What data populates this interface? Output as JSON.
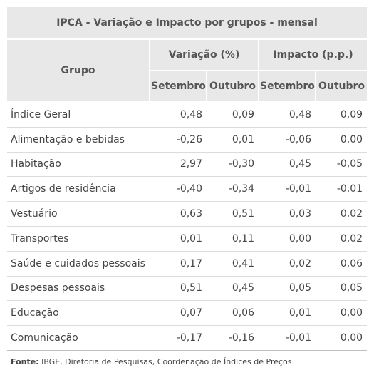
{
  "table": {
    "title": "IPCA - Variação e Impacto por grupos - mensal",
    "col_group": "Grupo",
    "col_variacao": "Variação (%)",
    "col_impacto": "Impacto (p.p.)",
    "sub_setembro": "Setembro",
    "sub_outubro": "Outubro",
    "rows": [
      {
        "grupo": "Índice Geral",
        "var_set": "0,48",
        "var_out": "0,09",
        "imp_set": "0,48",
        "imp_out": "0,09"
      },
      {
        "grupo": "Alimentação e bebidas",
        "var_set": "-0,26",
        "var_out": "0,01",
        "imp_set": "-0,06",
        "imp_out": "0,00"
      },
      {
        "grupo": "Habitação",
        "var_set": "2,97",
        "var_out": "-0,30",
        "imp_set": "0,45",
        "imp_out": "-0,05"
      },
      {
        "grupo": "Artigos de residência",
        "var_set": "-0,40",
        "var_out": "-0,34",
        "imp_set": "-0,01",
        "imp_out": "-0,01"
      },
      {
        "grupo": "Vestuário",
        "var_set": "0,63",
        "var_out": "0,51",
        "imp_set": "0,03",
        "imp_out": "0,02"
      },
      {
        "grupo": "Transportes",
        "var_set": "0,01",
        "var_out": "0,11",
        "imp_set": "0,00",
        "imp_out": "0,02"
      },
      {
        "grupo": "Saúde e cuidados pessoais",
        "var_set": "0,17",
        "var_out": "0,41",
        "imp_set": "0,02",
        "imp_out": "0,06"
      },
      {
        "grupo": "Despesas pessoais",
        "var_set": "0,51",
        "var_out": "0,45",
        "imp_set": "0,05",
        "imp_out": "0,05"
      },
      {
        "grupo": "Educação",
        "var_set": "0,07",
        "var_out": "0,06",
        "imp_set": "0,01",
        "imp_out": "0,00"
      },
      {
        "grupo": "Comunicação",
        "var_set": "-0,17",
        "var_out": "-0,16",
        "imp_set": "-0,01",
        "imp_out": "0,00"
      }
    ]
  },
  "source": {
    "label": "Fonte:",
    "text": " IBGE, Diretoria de Pesquisas, Coordenação de Índices de Preços"
  }
}
